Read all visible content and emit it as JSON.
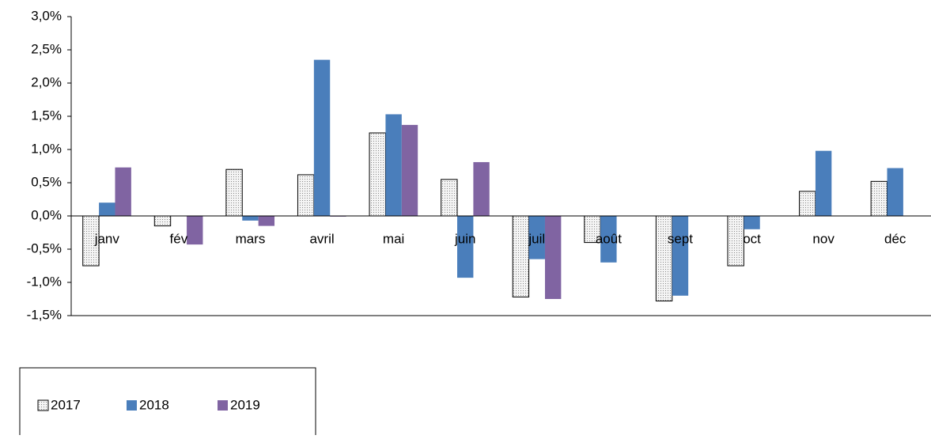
{
  "chart_data": {
    "type": "bar",
    "categories": [
      "janv",
      "fév",
      "mars",
      "avril",
      "mai",
      "juin",
      "juil",
      "août",
      "sept",
      "oct",
      "nov",
      "déc"
    ],
    "series": [
      {
        "name": "2017",
        "color": "#d9d9d9",
        "pattern": "dotted",
        "values": [
          -0.75,
          -0.15,
          0.7,
          0.62,
          1.25,
          0.55,
          -1.22,
          -0.4,
          -1.28,
          -0.75,
          0.37,
          0.52
        ]
      },
      {
        "name": "2018",
        "color": "#4a7ebb",
        "values": [
          0.2,
          0,
          -0.07,
          2.35,
          1.53,
          -0.93,
          -0.65,
          -0.7,
          -1.2,
          -0.2,
          0.98,
          0.72
        ]
      },
      {
        "name": "2019",
        "color": "#8064a2",
        "values": [
          0.73,
          -0.43,
          -0.15,
          -0.01,
          1.37,
          0.81,
          -1.25,
          null,
          null,
          null,
          null,
          null
        ]
      }
    ],
    "ylim": [
      -1.5,
      3.0
    ],
    "yticks": [
      {
        "value": -1.5,
        "label": "-1,5%"
      },
      {
        "value": -1.0,
        "label": "-1,0%"
      },
      {
        "value": -0.5,
        "label": "-0,5%"
      },
      {
        "value": 0,
        "label": "0,0%"
      },
      {
        "value": 0.5,
        "label": "0,5%"
      },
      {
        "value": 1.0,
        "label": "1,0%"
      },
      {
        "value": 1.5,
        "label": "1,5%"
      },
      {
        "value": 2.0,
        "label": "2,0%"
      },
      {
        "value": 2.5,
        "label": "2,5%"
      },
      {
        "value": 3.0,
        "label": "3,0%"
      }
    ],
    "grid": false,
    "legend": "bottom-left"
  }
}
